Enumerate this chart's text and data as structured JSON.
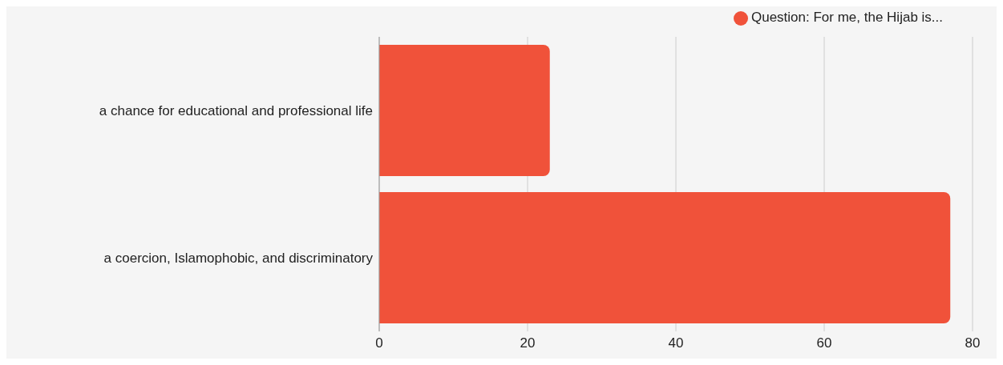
{
  "chart_data": {
    "type": "bar",
    "orientation": "horizontal",
    "categories": [
      "a chance for educational and professional life",
      "a coercion, Islamophobic, and discriminatory"
    ],
    "series": [
      {
        "name": "Question: For me, the Hijab is...",
        "color": "#f0523a",
        "values": [
          23,
          77
        ]
      }
    ],
    "xlim": [
      0,
      80
    ],
    "xticks": [
      0,
      20,
      40,
      60,
      80
    ],
    "grid": "x",
    "legend": "top"
  }
}
